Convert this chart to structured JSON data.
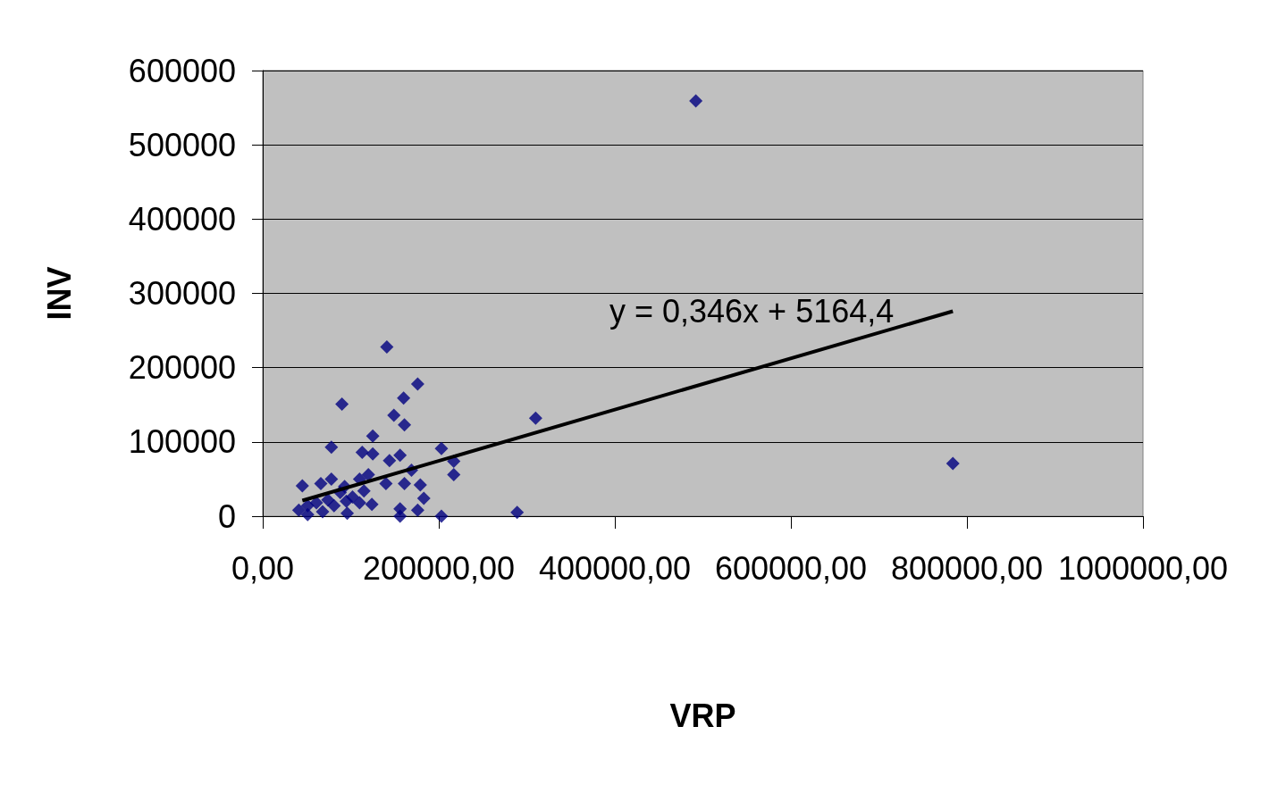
{
  "chart_data": {
    "type": "scatter",
    "xlabel": "VRP",
    "ylabel": "INV",
    "xlim": [
      0,
      1000000
    ],
    "xticks": [
      {
        "value": 0,
        "label": "0,00"
      },
      {
        "value": 200000,
        "label": "200000,00"
      },
      {
        "value": 400000,
        "label": "400000,00"
      },
      {
        "value": 600000,
        "label": "600000,00"
      },
      {
        "value": 800000,
        "label": "800000,00"
      },
      {
        "value": 1000000,
        "label": "1000000,00"
      }
    ],
    "ylim": [
      0,
      600000
    ],
    "yticks": [
      0,
      100000,
      200000,
      300000,
      400000,
      500000,
      600000
    ],
    "grid": "y",
    "marker": "diamond",
    "series": [
      {
        "color": "#000080",
        "x": [
          141000,
          176000,
          160000,
          90000,
          149000,
          161000,
          310000,
          78000,
          125000,
          113000,
          125000,
          156000,
          144000,
          203000,
          217000,
          217000,
          169000,
          161000,
          179000,
          183000,
          176000,
          156000,
          156000,
          203000,
          289000,
          45000,
          66000,
          78000,
          93000,
          110000,
          120000,
          140000,
          124000,
          96000,
          110000,
          41000,
          51000,
          68000,
          81000,
          61000,
          102000,
          88000,
          115000,
          51000,
          74000,
          95000,
          492000,
          784000
        ],
        "values": [
          228000,
          178000,
          159000,
          151000,
          136000,
          123000,
          132000,
          93000,
          108000,
          86000,
          84000,
          82000,
          75000,
          91000,
          74000,
          56000,
          62000,
          44000,
          42000,
          24000,
          8000,
          10000,
          0,
          0,
          5000,
          41000,
          44000,
          50000,
          40000,
          50000,
          56000,
          44000,
          16000,
          4000,
          18000,
          8000,
          2000,
          6000,
          14000,
          18000,
          26000,
          32000,
          34000,
          14000,
          22000,
          20000,
          559000,
          71000
        ]
      },
      {
        "type": "line",
        "marker": "none",
        "color": "#000000",
        "x": [
          45000,
          784000
        ],
        "values": [
          21000,
          276000
        ]
      }
    ],
    "annotations": [
      "y = 0,346x + 5164,4"
    ]
  }
}
